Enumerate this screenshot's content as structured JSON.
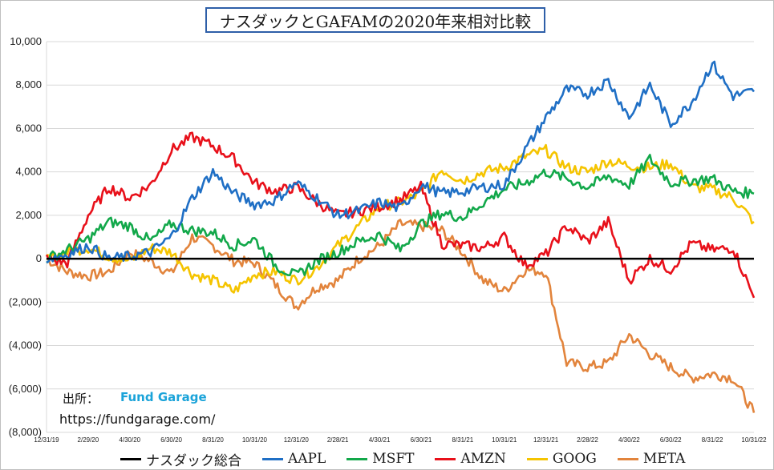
{
  "title": "ナスダックとGAFAMの2020年来相対比較",
  "source_label": "出所：",
  "source_brand": "Fund Garage",
  "source_url": "https://fundgarage.com/",
  "colors": {
    "nasdaq": "#000000",
    "aapl": "#1f6fc5",
    "msft": "#12a84a",
    "amzn": "#e8101a",
    "goog": "#f5c400",
    "meta": "#e2843c",
    "brand": "#1aa3d9",
    "grid": "#d9d9d9"
  },
  "chart_data": {
    "type": "line",
    "title": "ナスダックとGAFAMの2020年来相対比較",
    "ylim": [
      -8000,
      10000
    ],
    "yticks": [
      10000,
      8000,
      6000,
      4000,
      2000,
      0,
      -2000,
      -4000,
      -6000,
      -8000
    ],
    "ytick_labels": [
      "10,000",
      "8,000",
      "6,000",
      "4,000",
      "2,000",
      "0",
      "(2,000)",
      "(4,000)",
      "(6,000)",
      "(8,000)"
    ],
    "xticks": [
      "12/31/19",
      "2/29/20",
      "4/30/20",
      "6/30/20",
      "8/31/20",
      "10/31/20",
      "12/31/20",
      "2/28/21",
      "4/30/21",
      "6/30/21",
      "8/31/21",
      "10/31/21",
      "12/31/21",
      "2/28/22",
      "4/30/22",
      "6/30/22",
      "8/31/22",
      "10/31/22"
    ],
    "grid": true,
    "legend_position": "bottom",
    "x_index": [
      0,
      0.5,
      1,
      1.5,
      2,
      2.5,
      3,
      3.5,
      4,
      4.5,
      5,
      5.5,
      6,
      6.5,
      7,
      7.5,
      8,
      8.5,
      9,
      9.5,
      10,
      10.5,
      11,
      11.5,
      12,
      12.5,
      13,
      13.5,
      14,
      14.5,
      15,
      15.5,
      16,
      16.5,
      17
    ],
    "series": [
      {
        "name": "ナスダック総合",
        "key": "nasdaq",
        "values": [
          0,
          0,
          0,
          0,
          0,
          0,
          0,
          0,
          0,
          0,
          0,
          0,
          0,
          0,
          0,
          0,
          0,
          0,
          0,
          0,
          0,
          0,
          0,
          0,
          0,
          0,
          0,
          0,
          0,
          0,
          0,
          0,
          0,
          0,
          0
        ]
      },
      {
        "name": "AAPL",
        "key": "aapl",
        "values": [
          0,
          200,
          600,
          0,
          100,
          300,
          1000,
          2800,
          4000,
          3000,
          2500,
          2700,
          3500,
          2800,
          2000,
          2200,
          2600,
          2300,
          3400,
          3000,
          3100,
          3300,
          3400,
          5000,
          6500,
          7800,
          7600,
          8200,
          6500,
          8000,
          6200,
          7200,
          9000,
          7500,
          7700
        ]
      },
      {
        "name": "MSFT",
        "key": "msft",
        "values": [
          0,
          400,
          900,
          1700,
          1500,
          800,
          1600,
          1300,
          1200,
          600,
          900,
          -300,
          -800,
          -100,
          300,
          800,
          1100,
          400,
          1600,
          2100,
          1900,
          2600,
          3200,
          3500,
          4000,
          3700,
          3300,
          3800,
          3400,
          4600,
          3500,
          3600,
          3700,
          3100,
          3000
        ]
      },
      {
        "name": "AMZN",
        "key": "amzn",
        "values": [
          0,
          -200,
          2000,
          3300,
          2800,
          3400,
          5000,
          5600,
          5200,
          4600,
          3500,
          3100,
          3300,
          2600,
          2000,
          2200,
          2400,
          2700,
          3300,
          700,
          600,
          500,
          1000,
          -300,
          200,
          1500,
          800,
          1700,
          -1000,
          0,
          -500,
          700,
          400,
          500,
          -1800
        ]
      },
      {
        "name": "GOOG",
        "key": "goog",
        "values": [
          0,
          300,
          500,
          100,
          -100,
          500,
          300,
          -700,
          -1000,
          -1500,
          -700,
          -600,
          -1000,
          -400,
          600,
          1500,
          2400,
          2600,
          3000,
          4100,
          3600,
          4000,
          4200,
          4700,
          5000,
          4200,
          4000,
          4500,
          4300,
          4200,
          4400,
          3300,
          3200,
          2800,
          1700
        ]
      },
      {
        "name": "META",
        "key": "meta",
        "values": [
          0,
          -600,
          -800,
          -600,
          300,
          -100,
          -700,
          1000,
          600,
          -100,
          -200,
          -1200,
          -2200,
          -1300,
          -1000,
          0,
          600,
          1600,
          1500,
          1300,
          300,
          -1000,
          -1500,
          -500,
          -600,
          -4800,
          -5000,
          -4800,
          -3500,
          -4400,
          -5000,
          -5500,
          -5300,
          -5500,
          -7100
        ]
      }
    ]
  },
  "legend": [
    {
      "key": "nasdaq",
      "label": "ナスダック総合"
    },
    {
      "key": "aapl",
      "label": "AAPL"
    },
    {
      "key": "msft",
      "label": "MSFT"
    },
    {
      "key": "amzn",
      "label": "AMZN"
    },
    {
      "key": "goog",
      "label": "GOOG"
    },
    {
      "key": "meta",
      "label": "META"
    }
  ]
}
